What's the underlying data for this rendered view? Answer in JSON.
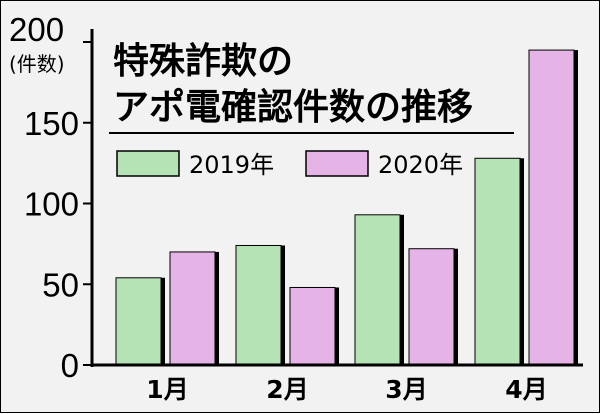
{
  "chart_data": {
    "type": "bar",
    "title_lines": [
      "特殊詐欺の",
      "アポ電確認件数の推移"
    ],
    "unit_label": "(件数)",
    "categories": [
      "1月",
      "2月",
      "3月",
      "4月"
    ],
    "series": [
      {
        "name": "2019年",
        "values": [
          54,
          74,
          93,
          128
        ],
        "color": "#b5e3b5"
      },
      {
        "name": "2020年",
        "values": [
          70,
          48,
          72,
          195
        ],
        "color": "#e6b3e6"
      }
    ],
    "ylim": [
      0,
      200
    ],
    "yticks": [
      0,
      50,
      100,
      150,
      200
    ],
    "grid": false,
    "legend_position": "top"
  }
}
